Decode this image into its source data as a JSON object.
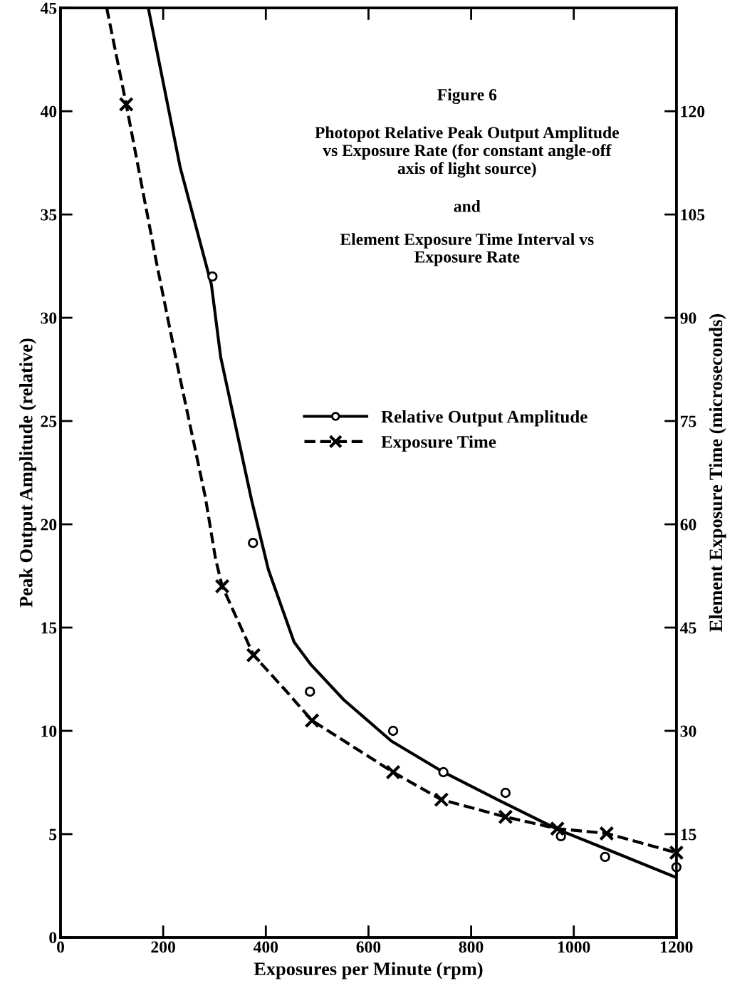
{
  "chart_data": {
    "type": "line",
    "title": "Figure 6",
    "subtitle": "Photopot Relative Peak Output Amplitude\nvs Exposure Rate (for constant angle-off\naxis of light source)",
    "annotations": [
      "and",
      "Element Exposure Time Interval vs\nExposure Rate"
    ],
    "xlabel": "Exposures per Minute (rpm)",
    "ylabel": "Peak Output Amplitude (relative)",
    "y2label": "Element Exposure Time (microseconds)",
    "xlim": [
      0,
      1200
    ],
    "xticks": [
      0,
      200,
      400,
      600,
      800,
      1000,
      1200
    ],
    "ylim": [
      0,
      45
    ],
    "yticks": [
      0,
      5,
      10,
      15,
      20,
      25,
      30,
      35,
      40,
      45
    ],
    "y2lim": [
      0,
      135
    ],
    "y2ticks": [
      15,
      30,
      45,
      60,
      75,
      90,
      105,
      120
    ],
    "grid": false,
    "legend": "right",
    "series": [
      {
        "type": "scatter",
        "marker": "circle",
        "color": "#000000",
        "x": [
          296,
          375,
          486,
          648,
          746,
          867,
          975,
          1061,
          1200
        ],
        "values": [
          32.0,
          19.1,
          11.9,
          10.0,
          8.0,
          7.0,
          4.9,
          3.9,
          3.4
        ]
      },
      {
        "name": "Relative Output Amplitude",
        "line_style": "solid",
        "color": "#000000",
        "x": [
          171,
          233,
          294,
          312,
          372,
          405,
          455,
          488,
          552,
          645,
          746,
          853,
          971,
          1061,
          1200
        ],
        "values": [
          45,
          37.3,
          31.6,
          28.1,
          21.2,
          17.8,
          14.3,
          13.2,
          11.5,
          9.5,
          8.0,
          6.65,
          5.2,
          4.3,
          2.9
        ]
      },
      {
        "type": "scatter",
        "axis": "y2",
        "marker": "cross",
        "color": "#000000",
        "x": [
          128,
          315,
          376,
          490,
          648,
          742,
          867,
          968,
          1064,
          1200
        ],
        "values": [
          121,
          51,
          41,
          31.5,
          24,
          20,
          17.5,
          15.8,
          15.1,
          12.3
        ]
      },
      {
        "name": "Exposure Time",
        "axis": "y2",
        "line_style": "dashed",
        "color": "#000000",
        "x": [
          90,
          128,
          187,
          225,
          282,
          302,
          315,
          376,
          437,
          490,
          648,
          742,
          867,
          968,
          1064,
          1200
        ],
        "values": [
          135,
          121,
          98,
          84,
          64,
          55,
          51,
          41,
          36,
          31.5,
          24,
          20,
          17.5,
          15.8,
          15.1,
          12.3
        ]
      }
    ]
  }
}
